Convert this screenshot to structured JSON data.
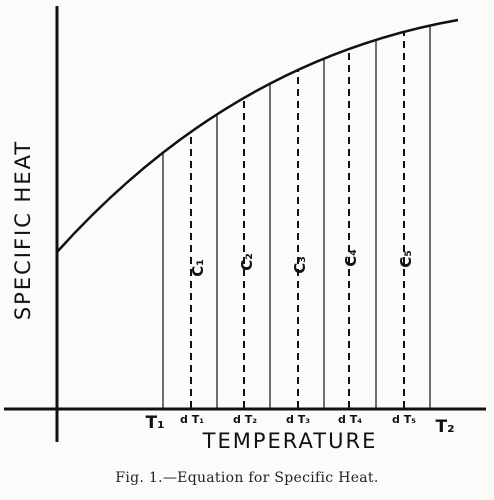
{
  "diagram": {
    "y_axis_label": "SPECIFIC HEAT",
    "x_axis_label": "TEMPERATURE",
    "start_label": "T₁",
    "end_label": "T₂",
    "strips": [
      {
        "c_label": "C₁",
        "dt_label": "d T₁"
      },
      {
        "c_label": "C₂",
        "dt_label": "d T₂"
      },
      {
        "c_label": "C₃",
        "dt_label": "d T₃"
      },
      {
        "c_label": "C₄",
        "dt_label": "d T₄"
      },
      {
        "c_label": "C₅",
        "dt_label": "d T₅"
      }
    ]
  },
  "caption": "Fig. 1.—Equation for Specific Heat."
}
